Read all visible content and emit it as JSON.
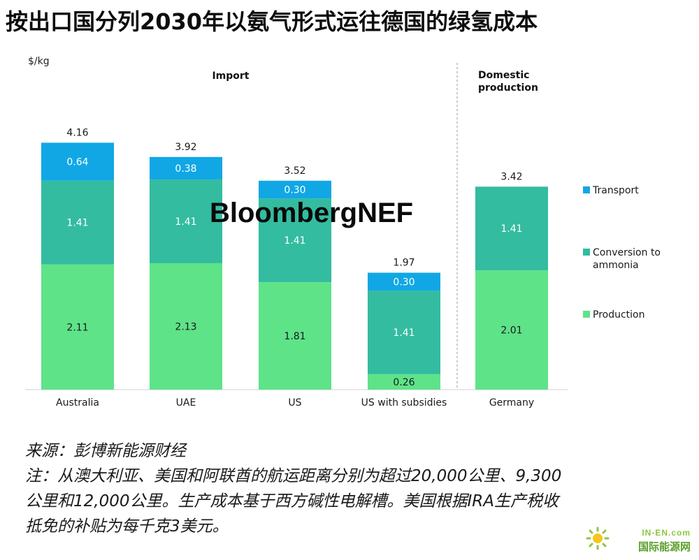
{
  "page": {
    "title": "按出口国分列2030年以氨气形式运往德国的绿氢成本",
    "source_line": "来源：彭博新能源财经",
    "note_lines": [
      "注：从澳大利亚、美国和阿联酋的航运距离分别为超过20,000公里、9,300",
      "公里和12,000公里。生产成本基于西方碱性电解槽。美国根据IRA生产税收",
      "抵免的补贴为每千克3美元。"
    ],
    "watermark": "BloombergNEF",
    "logo_text_top": "IN-EN.com",
    "logo_text_bottom": "国际能源网"
  },
  "chart_data": {
    "type": "bar",
    "stacked": true,
    "unit_label": "$/kg",
    "categories": [
      "Australia",
      "UAE",
      "US",
      "US with subsidies",
      "Germany"
    ],
    "group_labels": {
      "import": "Import",
      "domestic": "Domestic production"
    },
    "series": [
      {
        "name": "Production",
        "color": "#5ee389",
        "values": [
          2.11,
          2.13,
          1.81,
          0.26,
          2.01
        ]
      },
      {
        "name": "Conversion to ammonia",
        "color": "#33bca0",
        "values": [
          1.41,
          1.41,
          1.41,
          1.41,
          1.41
        ]
      },
      {
        "name": "Transport",
        "color": "#11a7e5",
        "values": [
          0.64,
          0.38,
          0.3,
          0.3,
          null
        ]
      }
    ],
    "value_labels": [
      [
        "2.11",
        "2.13",
        "1.81",
        "0.26",
        "2.01"
      ],
      [
        "1.41",
        "1.41",
        "1.41",
        "1.41",
        "1.41"
      ],
      [
        "0.64",
        "0.38",
        "0.30",
        "0.30",
        ""
      ]
    ],
    "totals": [
      "4.16",
      "3.92",
      "3.52",
      "1.97",
      "3.42"
    ],
    "legend_position": "right",
    "grid": false
  }
}
